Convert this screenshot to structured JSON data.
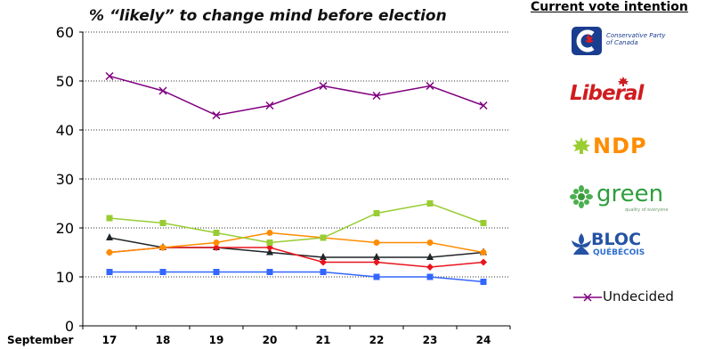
{
  "chart_data": {
    "type": "line",
    "title": "% “likely” to change mind before election",
    "xlabel": "September",
    "ylabel": "",
    "categories": [
      "17",
      "18",
      "19",
      "20",
      "21",
      "22",
      "23",
      "24"
    ],
    "ylim": [
      0,
      60
    ],
    "yticks": [
      0,
      10,
      20,
      30,
      40,
      50,
      60
    ],
    "grid": "horizontal dotted",
    "legend_title": "Current vote intention",
    "legend_position": "right",
    "series": [
      {
        "name": "Conservative Party of Canada",
        "color": "#1f2428",
        "marker": "triangle",
        "values": [
          18,
          16,
          16,
          15,
          14,
          14,
          14,
          15
        ]
      },
      {
        "name": "Liberal",
        "color": "#e8141e",
        "marker": "diamond",
        "values": [
          15,
          16,
          16,
          16,
          13,
          13,
          12,
          13
        ]
      },
      {
        "name": "NDP",
        "color": "#ff8c00",
        "marker": "circle",
        "values": [
          15,
          16,
          17,
          19,
          18,
          17,
          17,
          15
        ]
      },
      {
        "name": "green",
        "color": "#99cc33",
        "marker": "square",
        "values": [
          22,
          21,
          19,
          17,
          18,
          23,
          25,
          21
        ]
      },
      {
        "name": "BLOC QUEBECOIS",
        "color": "#3366ff",
        "marker": "square",
        "values": [
          11,
          11,
          11,
          11,
          11,
          10,
          10,
          9
        ]
      },
      {
        "name": "Undecided",
        "color": "#800080",
        "marker": "x",
        "values": [
          51,
          48,
          43,
          45,
          49,
          47,
          49,
          45
        ]
      }
    ]
  },
  "legend": {
    "conservative": {
      "line1": "Conservative Party",
      "line2": "of Canada"
    },
    "liberal": {
      "text": "Liberal"
    },
    "ndp": {
      "text": "NDP"
    },
    "green": {
      "text": "green",
      "tagline": "quality of everyone"
    },
    "bloc": {
      "line1": "BLOC",
      "line2": "QUÉBÉCOIS"
    },
    "undecided": {
      "text": "Undecided"
    }
  }
}
